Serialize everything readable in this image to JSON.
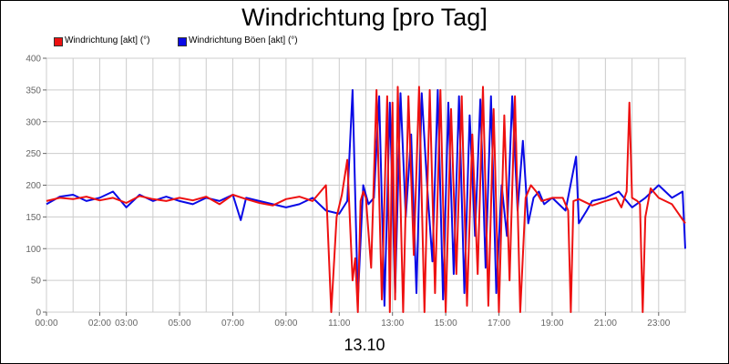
{
  "chart_data": {
    "type": "line",
    "title": "Windrichtung [pro Tag]",
    "xlabel": "13.10",
    "ylabel": "",
    "ylim": [
      0,
      400
    ],
    "yticks": [
      0,
      50,
      100,
      150,
      200,
      250,
      300,
      350,
      400
    ],
    "xlim": [
      0,
      24
    ],
    "xticks": [
      {
        "h": 0,
        "label": "00:00"
      },
      {
        "h": 2,
        "label": "02:00"
      },
      {
        "h": 3,
        "label": "03:00"
      },
      {
        "h": 5,
        "label": "05:00"
      },
      {
        "h": 7,
        "label": "07:00"
      },
      {
        "h": 9,
        "label": "09:00"
      },
      {
        "h": 11,
        "label": "11:00"
      },
      {
        "h": 13,
        "label": "13:00"
      },
      {
        "h": 15,
        "label": "15:00"
      },
      {
        "h": 17,
        "label": "17:00"
      },
      {
        "h": 19,
        "label": "19:00"
      },
      {
        "h": 21,
        "label": "21:00"
      },
      {
        "h": 23,
        "label": "23:00"
      }
    ],
    "grid": true,
    "legend_position": "top-left",
    "series": [
      {
        "name": "Windrichtung [akt] (°)",
        "color": "#ee1111",
        "x": [
          0.0,
          0.5,
          1.0,
          1.5,
          2.0,
          2.5,
          3.0,
          3.5,
          4.0,
          4.5,
          5.0,
          5.5,
          6.0,
          6.5,
          7.0,
          7.5,
          8.0,
          8.5,
          9.0,
          9.5,
          10.0,
          10.5,
          10.7,
          10.9,
          11.1,
          11.3,
          11.5,
          11.6,
          11.7,
          11.8,
          11.9,
          12.0,
          12.2,
          12.4,
          12.6,
          12.8,
          12.9,
          13.0,
          13.1,
          13.2,
          13.4,
          13.6,
          13.8,
          14.0,
          14.2,
          14.4,
          14.6,
          14.8,
          15.0,
          15.2,
          15.4,
          15.6,
          15.8,
          16.0,
          16.2,
          16.4,
          16.6,
          16.8,
          17.0,
          17.2,
          17.4,
          17.6,
          17.8,
          18.0,
          18.2,
          18.4,
          18.6,
          19.0,
          19.4,
          19.6,
          19.7,
          19.8,
          20.0,
          20.5,
          21.0,
          21.4,
          21.6,
          21.8,
          21.9,
          22.0,
          22.2,
          22.3,
          22.4,
          22.5,
          22.7,
          23.0,
          23.5,
          24.0
        ],
        "values": [
          175,
          180,
          178,
          182,
          176,
          180,
          172,
          183,
          178,
          175,
          180,
          176,
          182,
          170,
          185,
          178,
          172,
          168,
          178,
          182,
          175,
          200,
          0,
          150,
          185,
          240,
          50,
          85,
          0,
          175,
          190,
          180,
          70,
          350,
          20,
          340,
          0,
          330,
          20,
          355,
          0,
          340,
          90,
          355,
          0,
          350,
          30,
          350,
          0,
          320,
          60,
          340,
          10,
          280,
          60,
          355,
          10,
          320,
          0,
          310,
          50,
          340,
          0,
          180,
          200,
          190,
          175,
          180,
          180,
          160,
          0,
          175,
          178,
          168,
          175,
          180,
          165,
          190,
          330,
          180,
          175,
          170,
          0,
          150,
          195,
          180,
          170,
          140
        ]
      },
      {
        "name": "Windrichtung Böen [akt] (°)",
        "color": "#0a0ae6",
        "x": [
          0.0,
          0.5,
          1.0,
          1.5,
          2.0,
          2.5,
          3.0,
          3.5,
          4.0,
          4.5,
          5.0,
          5.5,
          6.0,
          6.5,
          7.0,
          7.3,
          7.5,
          8.0,
          8.5,
          9.0,
          9.5,
          10.0,
          10.5,
          11.0,
          11.3,
          11.5,
          11.7,
          11.9,
          12.1,
          12.3,
          12.5,
          12.7,
          12.9,
          13.1,
          13.3,
          13.5,
          13.7,
          13.9,
          14.1,
          14.3,
          14.5,
          14.7,
          14.9,
          15.1,
          15.3,
          15.5,
          15.7,
          15.9,
          16.1,
          16.3,
          16.5,
          16.7,
          16.9,
          17.1,
          17.3,
          17.5,
          17.7,
          17.9,
          18.1,
          18.3,
          18.5,
          18.7,
          19.0,
          19.5,
          19.9,
          20.0,
          20.3,
          20.5,
          21.0,
          21.5,
          22.0,
          22.5,
          23.0,
          23.5,
          23.9,
          24.0
        ],
        "values": [
          170,
          182,
          185,
          175,
          180,
          190,
          165,
          185,
          175,
          182,
          175,
          170,
          180,
          175,
          185,
          145,
          180,
          175,
          170,
          165,
          170,
          180,
          160,
          155,
          175,
          350,
          20,
          200,
          170,
          180,
          340,
          10,
          330,
          30,
          345,
          150,
          280,
          30,
          345,
          200,
          80,
          350,
          20,
          330,
          60,
          340,
          30,
          310,
          120,
          335,
          70,
          340,
          30,
          200,
          120,
          340,
          160,
          270,
          140,
          180,
          190,
          170,
          180,
          160,
          245,
          140,
          160,
          175,
          180,
          190,
          165,
          180,
          200,
          180,
          190,
          100
        ]
      }
    ]
  }
}
